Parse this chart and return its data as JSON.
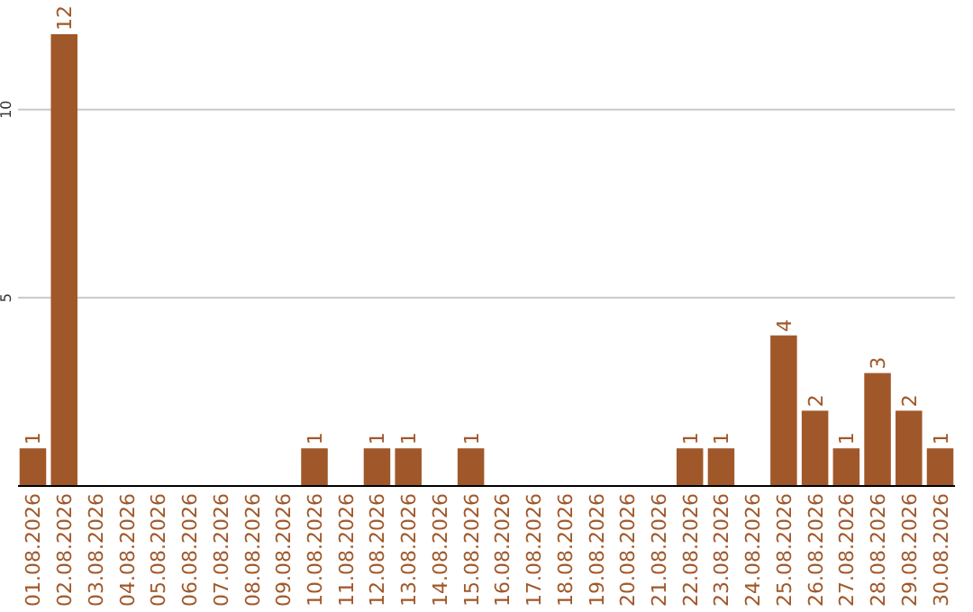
{
  "chart_data": {
    "type": "bar",
    "categories": [
      "01.08.2026",
      "02.08.2026",
      "03.08.2026",
      "04.08.2026",
      "05.08.2026",
      "06.08.2026",
      "07.08.2026",
      "08.08.2026",
      "09.08.2026",
      "10.08.2026",
      "11.08.2026",
      "12.08.2026",
      "13.08.2026",
      "14.08.2026",
      "15.08.2026",
      "16.08.2026",
      "17.08.2026",
      "18.08.2026",
      "19.08.2026",
      "20.08.2026",
      "21.08.2026",
      "22.08.2026",
      "23.08.2026",
      "24.08.2026",
      "25.08.2026",
      "26.08.2026",
      "27.08.2026",
      "28.08.2026",
      "29.08.2026",
      "30.08.2026"
    ],
    "values": [
      1,
      12,
      0,
      0,
      0,
      0,
      0,
      0,
      0,
      1,
      0,
      1,
      1,
      0,
      1,
      0,
      0,
      0,
      0,
      0,
      0,
      1,
      1,
      0,
      4,
      2,
      1,
      3,
      2,
      1
    ],
    "value_labels": [
      "1",
      "12",
      null,
      null,
      null,
      null,
      null,
      null,
      null,
      "1",
      null,
      "1",
      "1",
      null,
      "1",
      null,
      null,
      null,
      null,
      null,
      null,
      "1",
      "1",
      null,
      "4",
      "2",
      "1",
      "3",
      "2",
      "1"
    ],
    "color": "#a0582a",
    "ylim": [
      0,
      12
    ],
    "yticks": [
      5,
      10
    ],
    "grid": "y"
  }
}
